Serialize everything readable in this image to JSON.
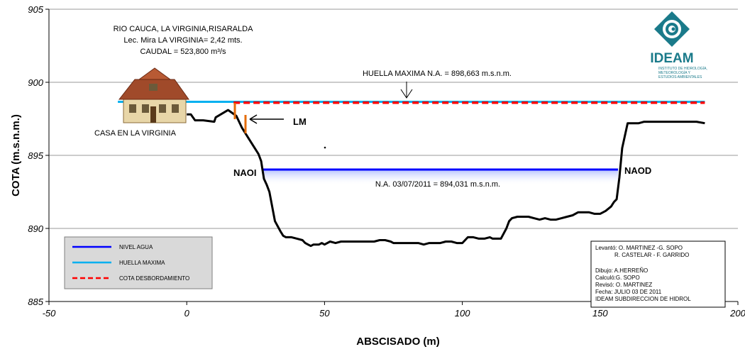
{
  "chart_data": {
    "type": "line",
    "xlabel": "ABSCISADO (m)",
    "ylabel": "COTA (m.s.n.m.)",
    "xlim": [
      -50,
      200
    ],
    "ylim": [
      885,
      905
    ],
    "x_ticks": [
      -50,
      0,
      50,
      100,
      150,
      200
    ],
    "y_ticks": [
      885,
      890,
      895,
      900,
      905
    ],
    "grid": "horizontal",
    "legend_position": "bottom-left",
    "header_lines": [
      "RIO CAUCA, LA VIRGINIA,RISARALDA",
      "Lec. Mira LA VIRGINIA= 2,42 mts.",
      "CAUDAL = 523,800 m³/s"
    ],
    "series": [
      {
        "name": "NIVEL AGUA",
        "color": "#0000ff",
        "style": "solid",
        "x": [
          27.5,
          156.5
        ],
        "y": [
          894.031,
          894.031
        ]
      },
      {
        "name": "HUELLA MAXIMA",
        "color": "#00b0f0",
        "style": "solid",
        "x": [
          -25,
          188
        ],
        "y": [
          898.663,
          898.663
        ]
      },
      {
        "name": "COTA DESBORDAMIENTO",
        "color": "#ff0000",
        "style": "dashed",
        "x": [
          17,
          188
        ],
        "y": [
          898.6,
          898.6
        ]
      },
      {
        "name": "",
        "color": "#000000",
        "style": "solid",
        "x": [
          0,
          1.5,
          3,
          6,
          10,
          10.5,
          15,
          18,
          20,
          23,
          26,
          27,
          27.5,
          28,
          29,
          30,
          31,
          32,
          34,
          35,
          36,
          38,
          40,
          42,
          43,
          44,
          45,
          46,
          48,
          49,
          50,
          52,
          54,
          56,
          58,
          60,
          62,
          64,
          66,
          68,
          70,
          72,
          74,
          75,
          76,
          78,
          80,
          82,
          84,
          86,
          88,
          90,
          92,
          94,
          96,
          98,
          100,
          102,
          104,
          106,
          108,
          110,
          111,
          112,
          114,
          116,
          117,
          118,
          120,
          122,
          124,
          126,
          128,
          130,
          132,
          134,
          136,
          138,
          140,
          142,
          144,
          146,
          148,
          150,
          152,
          154,
          155,
          156,
          157,
          158,
          160,
          162,
          164,
          166,
          170,
          175,
          180,
          185,
          188
        ],
        "y": [
          897.8,
          897.8,
          897.4,
          897.4,
          897.3,
          897.6,
          898.1,
          897.7,
          896.9,
          896.0,
          895.1,
          894.6,
          894.0,
          893.4,
          893.0,
          892.5,
          891.5,
          890.5,
          889.8,
          889.5,
          889.4,
          889.4,
          889.3,
          889.2,
          889.0,
          888.9,
          888.8,
          888.9,
          888.9,
          889.0,
          888.9,
          889.1,
          889.0,
          889.1,
          889.1,
          889.1,
          889.1,
          889.1,
          889.1,
          889.1,
          889.2,
          889.2,
          889.1,
          889.0,
          889.0,
          889.0,
          889.0,
          889.0,
          889.0,
          888.9,
          889.0,
          889.0,
          889.0,
          889.1,
          889.1,
          889.0,
          889.0,
          889.4,
          889.4,
          889.3,
          889.3,
          889.4,
          889.3,
          889.3,
          889.3,
          890.0,
          890.5,
          890.7,
          890.8,
          890.8,
          890.8,
          890.7,
          890.6,
          890.7,
          890.6,
          890.6,
          890.7,
          890.8,
          890.9,
          891.1,
          891.1,
          891.1,
          891.0,
          891.0,
          891.2,
          891.5,
          891.8,
          892.0,
          893.5,
          895.5,
          897.2,
          897.2,
          897.2,
          897.3,
          897.3,
          897.3,
          897.3,
          897.3,
          897.2
        ]
      }
    ],
    "annotations": {
      "huella_label": "HUELLA MAXIMA N.A. = 898,663 m.s.n.m.",
      "na_label": "N.A. 03/07/2011 = 894,031 m.s.n.m.",
      "naoi": "NAOI",
      "naod": "NAOD",
      "lm": "LM",
      "casa": "CASA  EN LA VIRGINIA"
    },
    "info_box": {
      "levanto_1": "Levantó: O. MARTINEZ -G. SOPO",
      "levanto_2": "R. CASTELAR - F. GARRIDO",
      "dibujo": "Dibujo:  A.HERREÑO",
      "calculo": "Calculó:G. SOPO",
      "reviso": "Revisó: O. MARTINEZ",
      "fecha": "Fecha:  JULIO  03 DE 2011",
      "subdir": "IDEAM SUBDIRECCION  DE  HIDROL"
    },
    "logo": {
      "name": "IDEAM",
      "subtitle_1": "INSTITUTO DE HIDROLOGÍA,",
      "subtitle_2": "METEOROLOGÍA Y",
      "subtitle_3": "ESTUDIOS AMBIENTALES",
      "color": "#1a7a8a"
    },
    "colors": {
      "plot_bg": "#ffffff",
      "legend_bg": "#d9d9d9",
      "grid": "#9a9a9a",
      "staff_gauge": "#e46c0a"
    }
  }
}
